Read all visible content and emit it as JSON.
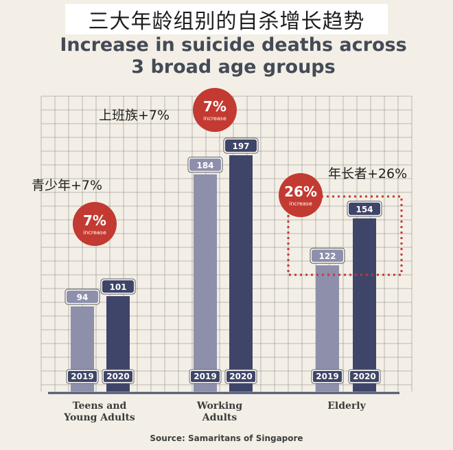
{
  "overlay_title": "三大年龄组别的自杀增长趋势",
  "chart_data": {
    "type": "bar",
    "title_line1": "Increase in suicide deaths across",
    "title_line2": "3 broad age groups",
    "categories": [
      "Teens and Young Adults",
      "Working Adults",
      "Elderly"
    ],
    "category_lines": [
      [
        "Teens and",
        "Young Adults"
      ],
      [
        "Working",
        "Adults"
      ],
      [
        "Elderly"
      ]
    ],
    "series": [
      {
        "name": "2019",
        "values": [
          94,
          184,
          122
        ],
        "color": "#8e8fab"
      },
      {
        "name": "2020",
        "values": [
          101,
          197,
          154
        ],
        "color": "#3f4568"
      }
    ],
    "ylim": [
      0,
      200
    ],
    "grid": true,
    "bubbles": [
      {
        "pct": "7%",
        "word": "increase"
      },
      {
        "pct": "7%",
        "word": "increase"
      },
      {
        "pct": "26%",
        "word": "increase"
      }
    ],
    "annotations": [
      "青少年+7%",
      "上班族+7%",
      "年长者+26%"
    ],
    "source": "Source: Samaritans of Singapore",
    "colors": {
      "bubble": "#c23a31",
      "dotted_box": "#c23a31",
      "baseline": "#4a5270",
      "grid": "#6e6e6e"
    }
  }
}
